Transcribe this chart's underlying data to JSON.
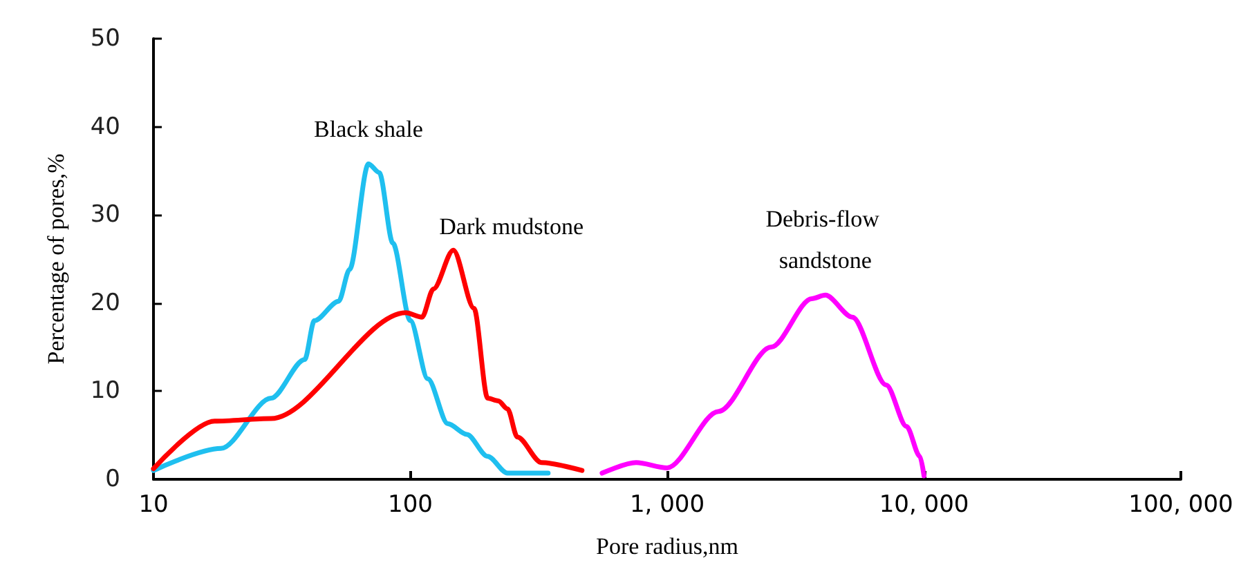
{
  "chart_data": {
    "type": "line",
    "xlabel": "Pore radius,nm",
    "ylabel": "Percentage of pores,%",
    "log": "x",
    "xlim": [
      10,
      100000
    ],
    "xticks": [
      10,
      100,
      {
        "value": 1000,
        "label": "1, 000"
      },
      {
        "value": 10000,
        "label": "10, 000"
      },
      {
        "value": 100000,
        "label": "100, 000"
      }
    ],
    "ylim": [
      0,
      50
    ],
    "yticks": [
      0,
      10,
      20,
      30,
      40,
      50
    ],
    "grid": false,
    "legend": false,
    "marker": "none",
    "line_style": "solid",
    "series": [
      {
        "name": "Black shale",
        "color": "#1fbfef",
        "x": [
          10,
          18.3,
          28.7,
          38.8,
          42.3,
          52.6,
          58,
          68.7,
          75.7,
          85.5,
          100,
          117,
          140,
          166,
          200,
          239,
          344
        ],
        "values": [
          1,
          3.5,
          9.2,
          13.6,
          18,
          20.2,
          23.8,
          35.8,
          34.8,
          26.8,
          18,
          11.4,
          6.3,
          5.1,
          2.6,
          0.7,
          0.7
        ]
      },
      {
        "name": "Dark mudstone",
        "color": "#ff0000",
        "x": [
          10,
          17.3,
          28.7,
          96,
          111,
          123,
          147,
          177,
          200,
          220,
          239,
          261,
          324,
          466
        ],
        "values": [
          1.2,
          6.6,
          6.9,
          18.9,
          18.4,
          21.6,
          26,
          19.4,
          9.2,
          8.9,
          8,
          4.8,
          1.9,
          1
        ]
      },
      {
        "name": "Debris-flow sandstone",
        "color": "#ff00ff",
        "x": [
          558,
          757,
          1000,
          1585,
          2541,
          3656,
          4130,
          5260,
          7130,
          8550,
          9640,
          10000
        ],
        "values": [
          0.7,
          1.9,
          1.3,
          7.7,
          15,
          20.5,
          20.9,
          18.4,
          10.7,
          6,
          2.6,
          0.4
        ]
      }
    ]
  }
}
